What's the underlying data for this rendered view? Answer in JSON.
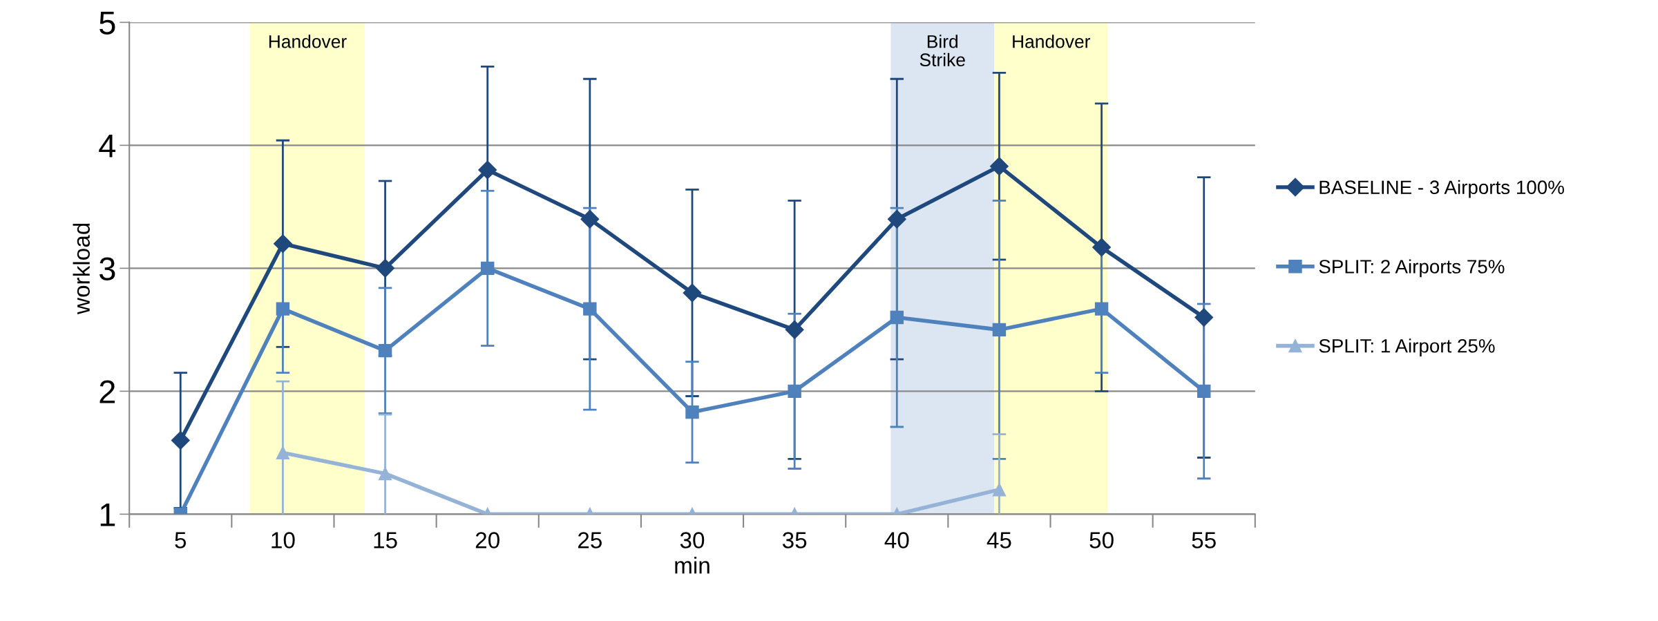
{
  "chart_data": {
    "type": "line",
    "xlabel": "min",
    "ylabel": "workload",
    "x": [
      5,
      10,
      15,
      20,
      25,
      30,
      35,
      40,
      45,
      50,
      55
    ],
    "xlim": [
      2.5,
      57.5
    ],
    "xticks": [
      5,
      10,
      15,
      20,
      25,
      30,
      35,
      40,
      45,
      50,
      55
    ],
    "ylim": [
      1,
      5
    ],
    "yticks": [
      1,
      2,
      3,
      4,
      5
    ],
    "grid": "y",
    "legend": "right",
    "line_style": "solid",
    "series": [
      {
        "name": "BASELINE - 3 Airports 100%",
        "color": "#1f497d",
        "marker": "diamond",
        "values": [
          1.6,
          3.2,
          3.0,
          3.8,
          3.4,
          2.8,
          2.5,
          3.4,
          3.83,
          3.17,
          2.6
        ],
        "errors": [
          0.55,
          0.84,
          0.71,
          0.84,
          1.14,
          0.84,
          1.05,
          1.14,
          0.76,
          1.17,
          1.14
        ]
      },
      {
        "name": "SPLIT: 2 Airports 75%",
        "color": "#4f81bd",
        "marker": "square",
        "values": [
          1.0,
          2.67,
          2.33,
          3.0,
          2.67,
          1.83,
          2.0,
          2.6,
          2.5,
          2.67,
          2.0
        ],
        "errors": [
          null,
          0.52,
          0.51,
          0.63,
          0.82,
          0.41,
          0.63,
          0.89,
          1.05,
          0.52,
          0.71
        ]
      },
      {
        "name": "SPLIT: 1 Airport 25%",
        "color": "#95b3d7",
        "marker": "triangle",
        "values": [
          null,
          1.5,
          1.33,
          1.0,
          1.0,
          1.0,
          1.0,
          1.0,
          1.2,
          null,
          null
        ],
        "errors": [
          null,
          0.58,
          0.48,
          null,
          null,
          null,
          null,
          null,
          0.45,
          null,
          null
        ]
      }
    ],
    "bands": [
      {
        "axis": "x",
        "from": 8.4,
        "to": 14.0,
        "label": "Handover",
        "color": "#ffffcc"
      },
      {
        "axis": "x",
        "from": 39.7,
        "to": 44.75,
        "label": "Bird\nStrike",
        "color": "#dce6f2"
      },
      {
        "axis": "x",
        "from": 44.75,
        "to": 50.3,
        "label": "Handover",
        "color": "#ffffcc"
      }
    ]
  }
}
